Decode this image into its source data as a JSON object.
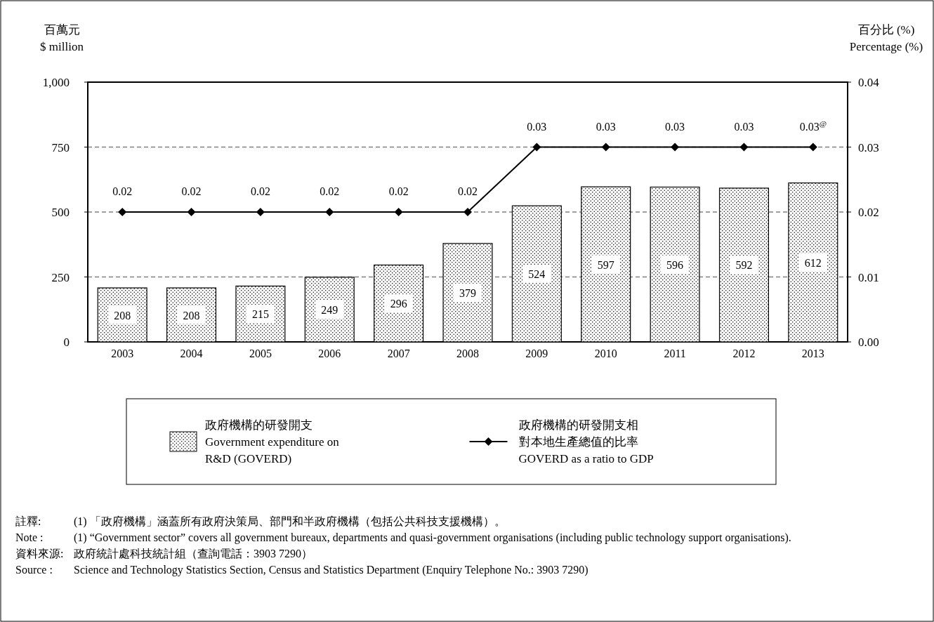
{
  "chart_data": {
    "type": "bar",
    "categories": [
      "2003",
      "2004",
      "2005",
      "2006",
      "2007",
      "2008",
      "2009",
      "2010",
      "2011",
      "2012",
      "2013"
    ],
    "ylabel": "百萬元\n$ million",
    "y2label": "百分比 (%)\nPercentage (%)",
    "ylim": [
      0,
      1000
    ],
    "yticks": [
      0,
      250,
      500,
      750,
      {
        "value": 1000,
        "label": "1,000"
      }
    ],
    "y2lim": [
      0,
      0.04
    ],
    "y2ticks": [
      {
        "value": 0,
        "label": "0.00"
      },
      0.01,
      0.02,
      0.03,
      0.04
    ],
    "grid": "y",
    "legend": "bottom",
    "series": [
      {
        "name": "政府機構的研發開支\nGovernment expenditure on\nR&D (GOVERD)",
        "color": "#000000",
        "values": [
          208,
          208,
          215,
          249,
          296,
          379,
          524,
          597,
          596,
          592,
          612
        ],
        "value_labels": [
          "208",
          "208",
          "215",
          "249",
          "296",
          "379",
          "524",
          "597",
          "596",
          "592",
          "612"
        ]
      },
      {
        "name": "政府機構的研發開支相對本地生產總值的比率\nGOVERD as a ratio to GDP",
        "type": "line",
        "axis": "y2",
        "color": "#000000",
        "marker": "diamond",
        "values": [
          0.02,
          0.02,
          0.02,
          0.02,
          0.02,
          0.02,
          0.03,
          0.03,
          0.03,
          0.03,
          0.03
        ],
        "value_labels": [
          "0.02",
          "0.02",
          "0.02",
          "0.02",
          "0.02",
          "0.02",
          "0.03",
          "0.03",
          "0.03",
          "0.03",
          "0.03$^{@}$"
        ]
      }
    ],
    "annotations": [
      "註釋:\t(1) 「政府機構」涵蓋所有政府決策局、部門和半政府機構（包括公共科技支援機構）。",
      "Note :\t(1) “Government sector” covers all government bureaux, departments and quasi-government organisations (including public technology support organisations).",
      "資料來源:\t政府統計處科技統計組（查詢電話：3903 7290）",
      "Source :\tScience and Technology Statistics Section, Census and Statistics Department (Enquiry Telephone No.: 3903 7290)"
    ]
  }
}
